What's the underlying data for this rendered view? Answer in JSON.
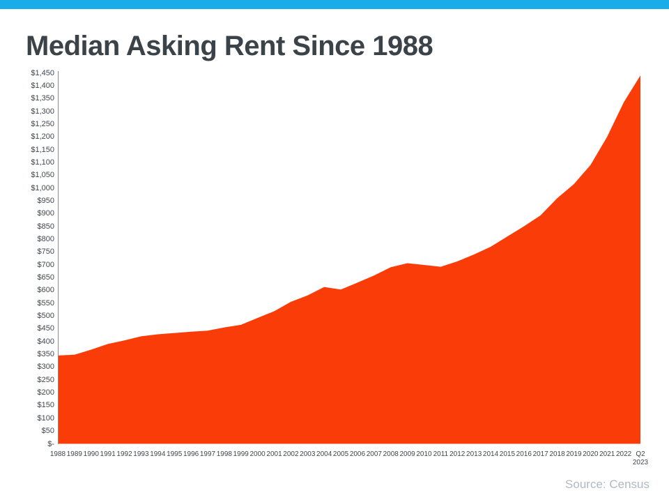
{
  "page": {
    "title": "Median Asking Rent Since 1988",
    "source": "Source: Census",
    "accent_bar_color": "#19ACE8",
    "title_color": "#3B4248",
    "source_color": "#AFBAC0"
  },
  "chart_data": {
    "type": "area",
    "title": "Median Asking Rent Since 1988",
    "categories": [
      "1988",
      "1989",
      "1990",
      "1991",
      "1992",
      "1993",
      "1994",
      "1995",
      "1996",
      "1997",
      "1998",
      "1999",
      "2000",
      "2001",
      "2002",
      "2003",
      "2004",
      "2005",
      "2006",
      "2007",
      "2008",
      "2009",
      "2010",
      "2011",
      "2012",
      "2013",
      "2014",
      "2015",
      "2016",
      "2017",
      "2018",
      "2019",
      "2020",
      "2021",
      "2022",
      "Q2 2023"
    ],
    "values": [
      345,
      348,
      368,
      390,
      404,
      420,
      428,
      433,
      438,
      442,
      455,
      465,
      492,
      518,
      555,
      580,
      613,
      603,
      630,
      658,
      690,
      706,
      699,
      692,
      713,
      740,
      770,
      810,
      850,
      893,
      960,
      1015,
      1090,
      1200,
      1335,
      1440
    ],
    "ylim": [
      0,
      1450
    ],
    "ytick_step": 50,
    "ytick_labels": [
      "$1,450",
      "$1,400",
      "$1,350",
      "$1,300",
      "$1,250",
      "$1,200",
      "$1,150",
      "$1,100",
      "$1,050",
      "$1,000",
      "$950",
      "$900",
      "$850",
      "$800",
      "$750",
      "$700",
      "$650",
      "$600",
      "$550",
      "$500",
      "$450",
      "$400",
      "$350",
      "$300",
      "$250",
      "$200",
      "$150",
      "$100",
      "$50",
      "$-"
    ],
    "xlabel": "",
    "ylabel": "",
    "grid": false,
    "legend": false,
    "fill_color": "#FA3C08",
    "axis_color": "#8A8A8A",
    "tick_label_color": "#40464C",
    "source": "Source: Census"
  }
}
